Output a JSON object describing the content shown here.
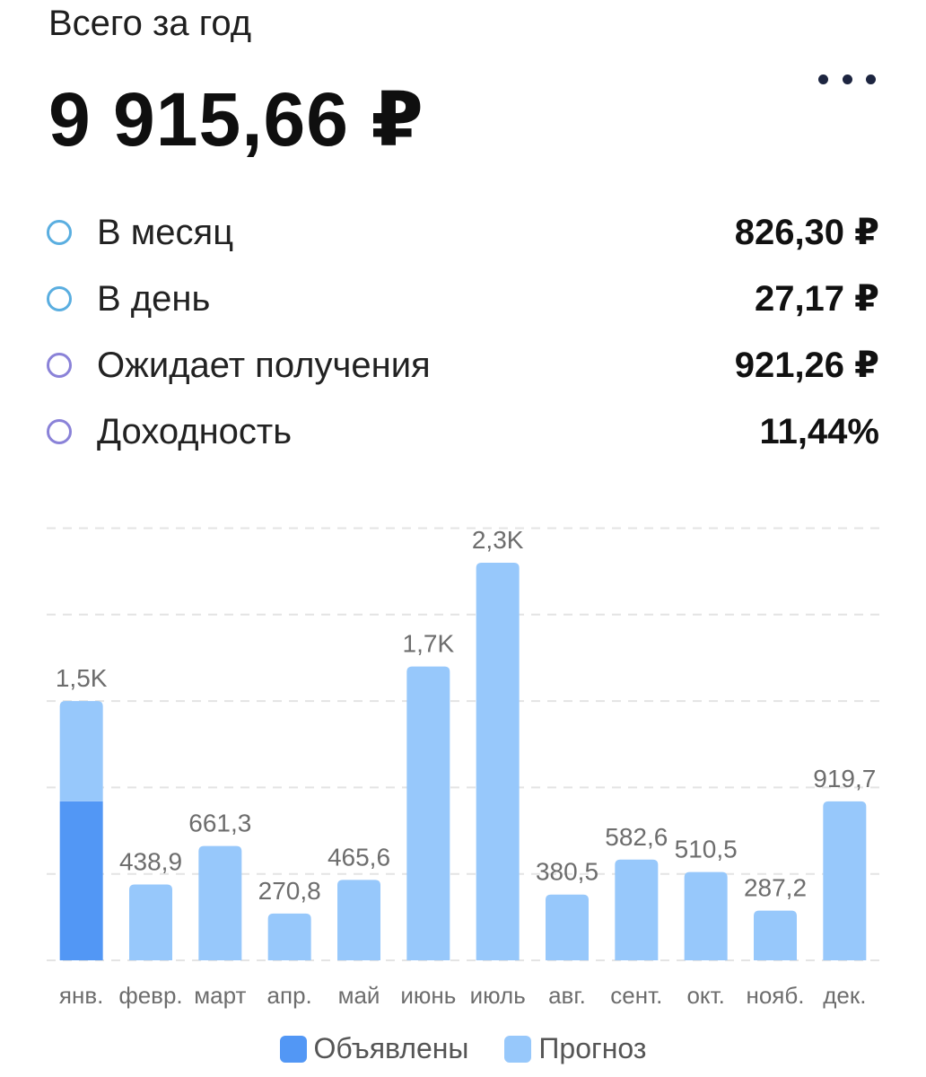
{
  "header": {
    "subtitle": "Всего за год",
    "total": "9 915,66 ₽",
    "menu_icon": "more-horizontal-icon"
  },
  "stats": [
    {
      "label": "В месяц",
      "value": "826,30 ₽",
      "color": "#5aaee0"
    },
    {
      "label": "В день",
      "value": "27,17 ₽",
      "color": "#5aaee0"
    },
    {
      "label": "Ожидает получения",
      "value": "921,26 ₽",
      "color": "#8a82d8"
    },
    {
      "label": "Доходность",
      "value": "11,44%",
      "color": "#8a82d8"
    }
  ],
  "chart_data": {
    "type": "bar",
    "stacked": true,
    "grid": true,
    "ylim": [
      0,
      2500
    ],
    "categories": [
      "янв.",
      "февр.",
      "март",
      "апр.",
      "май",
      "июнь",
      "июль",
      "авг.",
      "сент.",
      "окт.",
      "нояб.",
      "дек."
    ],
    "labels": [
      "1,5K",
      "438,9",
      "661,3",
      "270,8",
      "465,6",
      "1,7K",
      "2,3K",
      "380,5",
      "582,6",
      "510,5",
      "287,2",
      "919,7"
    ],
    "series": [
      {
        "name": "Объявлены",
        "color": "#5297f5",
        "values": [
          920,
          0,
          0,
          0,
          0,
          0,
          0,
          0,
          0,
          0,
          0,
          0
        ]
      },
      {
        "name": "Прогноз",
        "color": "#97c8fb",
        "values": [
          580,
          438.9,
          661.3,
          270.8,
          465.6,
          1700,
          2300,
          380.5,
          582.6,
          510.5,
          287.2,
          919.7
        ]
      }
    ],
    "legend_position": "bottom-center"
  }
}
